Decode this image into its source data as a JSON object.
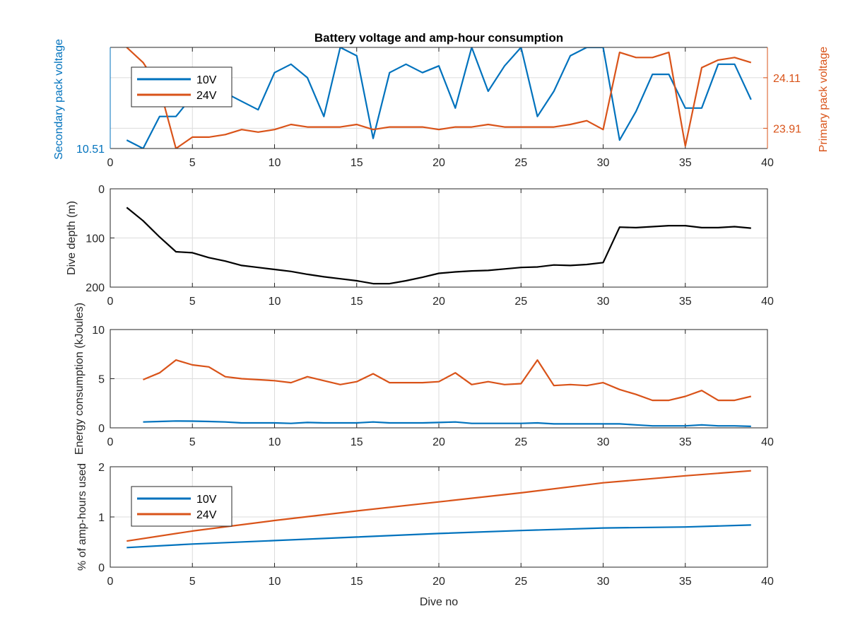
{
  "chart_data": [
    {
      "type": "line",
      "title": "Battery voltage and amp-hour consumption",
      "xlabel": "",
      "ylabel_left": "Secondary pack voltage",
      "ylabel_right": "Primary pack voltage",
      "xlim": [
        0,
        40
      ],
      "xticks": [
        "0",
        "5",
        "10",
        "15",
        "20",
        "25",
        "30",
        "35",
        "40"
      ],
      "ylim_left": [
        10.51,
        10.54
      ],
      "yticks_left": [
        {
          "value": 10.51,
          "label": "10.51"
        }
      ],
      "ylim_right": [
        23.83,
        24.23
      ],
      "yticks_right": [
        {
          "value": 23.91,
          "label": "23.91"
        },
        {
          "value": 24.11,
          "label": "24.11"
        }
      ],
      "grid": true,
      "legend": "upper-left",
      "colors": {
        "10V": "#0072bd",
        "24V": "#d95319",
        "axis_left": "#0072bd",
        "axis_right": "#d95319"
      },
      "series": [
        {
          "name": "10V",
          "axis": "left",
          "x": [
            1,
            2,
            3,
            4,
            5,
            6,
            7,
            8,
            9,
            10,
            11,
            12,
            13,
            14,
            15,
            16,
            17,
            18,
            19,
            20,
            21,
            22,
            23,
            24,
            25,
            26,
            27,
            28,
            29,
            30,
            31,
            32,
            33,
            34,
            35,
            36,
            37,
            38,
            39
          ],
          "y": [
            10.5125,
            10.51,
            10.5195,
            10.5195,
            10.5255,
            10.529,
            10.5265,
            10.524,
            10.5215,
            10.5325,
            10.535,
            10.531,
            10.5195,
            10.54,
            10.5375,
            10.513,
            10.5325,
            10.535,
            10.5325,
            10.5345,
            10.522,
            10.54,
            10.527,
            10.5345,
            10.54,
            10.5195,
            10.527,
            10.5375,
            10.54,
            10.54,
            10.5125,
            10.521,
            10.532,
            10.532,
            10.522,
            10.522,
            10.535,
            10.535,
            10.5245
          ]
        },
        {
          "name": "24V",
          "axis": "right",
          "x": [
            1,
            2,
            3,
            4,
            5,
            6,
            7,
            8,
            9,
            10,
            11,
            12,
            13,
            14,
            15,
            16,
            17,
            18,
            19,
            20,
            21,
            22,
            23,
            24,
            25,
            26,
            27,
            28,
            29,
            30,
            31,
            32,
            33,
            34,
            35,
            36,
            37,
            38,
            39
          ],
          "y": [
            24.23,
            24.17,
            24.07,
            23.83,
            23.875,
            23.875,
            23.885,
            23.905,
            23.895,
            23.905,
            23.925,
            23.915,
            23.915,
            23.915,
            23.925,
            23.905,
            23.915,
            23.915,
            23.915,
            23.905,
            23.915,
            23.915,
            23.925,
            23.915,
            23.915,
            23.915,
            23.915,
            23.925,
            23.94,
            23.905,
            24.21,
            24.19,
            24.19,
            24.21,
            23.84,
            24.15,
            24.18,
            24.19,
            24.17
          ]
        }
      ]
    },
    {
      "type": "line",
      "title": "",
      "xlabel": "",
      "ylabel": "Dive depth (m)",
      "xlim": [
        0,
        40
      ],
      "xticks": [
        "0",
        "5",
        "10",
        "15",
        "20",
        "25",
        "30",
        "35",
        "40"
      ],
      "ylim": [
        0,
        200
      ],
      "reversed_y": true,
      "yticks": [
        {
          "value": 0,
          "label": "0"
        },
        {
          "value": 100,
          "label": "100"
        },
        {
          "value": 200,
          "label": "200"
        }
      ],
      "grid": true,
      "colors": {
        "depth": "#000000"
      },
      "series": [
        {
          "x": [
            1,
            2,
            3,
            4,
            5,
            6,
            7,
            8,
            9,
            10,
            11,
            12,
            13,
            14,
            15,
            16,
            17,
            18,
            19,
            20,
            21,
            22,
            23,
            24,
            25,
            26,
            27,
            28,
            29,
            30,
            31,
            32,
            33,
            34,
            35,
            36,
            37,
            38,
            39
          ],
          "y": [
            38,
            65,
            98,
            128,
            130,
            140,
            147,
            156,
            160,
            164,
            168,
            174,
            179,
            183,
            187,
            193,
            193,
            187,
            180,
            172,
            169,
            167,
            166,
            163,
            160,
            159,
            155,
            156,
            154,
            150,
            78,
            79,
            77,
            75,
            75,
            79,
            79,
            77,
            80
          ]
        }
      ]
    },
    {
      "type": "line",
      "title": "",
      "xlabel": "",
      "ylabel": "Energy consumption (kJoules)",
      "xlim": [
        0,
        40
      ],
      "xticks": [
        "0",
        "5",
        "10",
        "15",
        "20",
        "25",
        "30",
        "35",
        "40"
      ],
      "ylim": [
        0,
        10
      ],
      "yticks": [
        {
          "value": 0,
          "label": "0"
        },
        {
          "value": 5,
          "label": "5"
        },
        {
          "value": 10,
          "label": "10"
        }
      ],
      "grid": true,
      "colors": {
        "10V": "#0072bd",
        "24V": "#d95319"
      },
      "series": [
        {
          "name": "10V",
          "x": [
            2,
            3,
            4,
            5,
            6,
            7,
            8,
            9,
            10,
            11,
            12,
            13,
            14,
            15,
            16,
            17,
            18,
            19,
            20,
            21,
            22,
            23,
            24,
            25,
            26,
            27,
            28,
            29,
            30,
            31,
            32,
            33,
            34,
            35,
            36,
            37,
            38,
            39
          ],
          "y": [
            0.6,
            0.65,
            0.7,
            0.68,
            0.65,
            0.6,
            0.5,
            0.5,
            0.5,
            0.45,
            0.55,
            0.5,
            0.5,
            0.5,
            0.6,
            0.5,
            0.5,
            0.5,
            0.55,
            0.6,
            0.45,
            0.45,
            0.45,
            0.45,
            0.5,
            0.4,
            0.4,
            0.4,
            0.4,
            0.4,
            0.3,
            0.2,
            0.2,
            0.2,
            0.3,
            0.2,
            0.2,
            0.15
          ]
        },
        {
          "name": "24V",
          "x": [
            2,
            3,
            4,
            5,
            6,
            7,
            8,
            9,
            10,
            11,
            12,
            13,
            14,
            15,
            16,
            17,
            18,
            19,
            20,
            21,
            22,
            23,
            24,
            25,
            26,
            27,
            28,
            29,
            30,
            31,
            32,
            33,
            34,
            35,
            36,
            37,
            38,
            39
          ],
          "y": [
            4.9,
            5.6,
            6.9,
            6.4,
            6.2,
            5.2,
            5.0,
            4.9,
            4.8,
            4.6,
            5.2,
            4.8,
            4.4,
            4.7,
            5.5,
            4.6,
            4.6,
            4.6,
            4.7,
            5.6,
            4.4,
            4.7,
            4.4,
            4.5,
            6.9,
            4.3,
            4.4,
            4.3,
            4.6,
            3.9,
            3.4,
            2.8,
            2.8,
            3.2,
            3.8,
            2.8,
            2.8,
            3.2
          ]
        }
      ]
    },
    {
      "type": "line",
      "title": "",
      "xlabel": "Dive no",
      "ylabel": "% of amp-hours used",
      "xlim": [
        0,
        40
      ],
      "xticks": [
        "0",
        "5",
        "10",
        "15",
        "20",
        "25",
        "30",
        "35",
        "40"
      ],
      "ylim": [
        0,
        2
      ],
      "yticks": [
        {
          "value": 0,
          "label": "0"
        },
        {
          "value": 1,
          "label": "1"
        },
        {
          "value": 2,
          "label": "2"
        }
      ],
      "grid": true,
      "legend": "lower-left",
      "colors": {
        "10V": "#0072bd",
        "24V": "#d95319"
      },
      "series": [
        {
          "name": "10V",
          "x": [
            1,
            5,
            10,
            15,
            20,
            25,
            30,
            35,
            39
          ],
          "y": [
            0.39,
            0.46,
            0.53,
            0.6,
            0.67,
            0.73,
            0.78,
            0.8,
            0.84
          ]
        },
        {
          "name": "24V",
          "x": [
            1,
            5,
            10,
            15,
            20,
            25,
            30,
            35,
            39
          ],
          "y": [
            0.52,
            0.72,
            0.93,
            1.12,
            1.3,
            1.48,
            1.68,
            1.82,
            1.92
          ]
        }
      ]
    }
  ]
}
